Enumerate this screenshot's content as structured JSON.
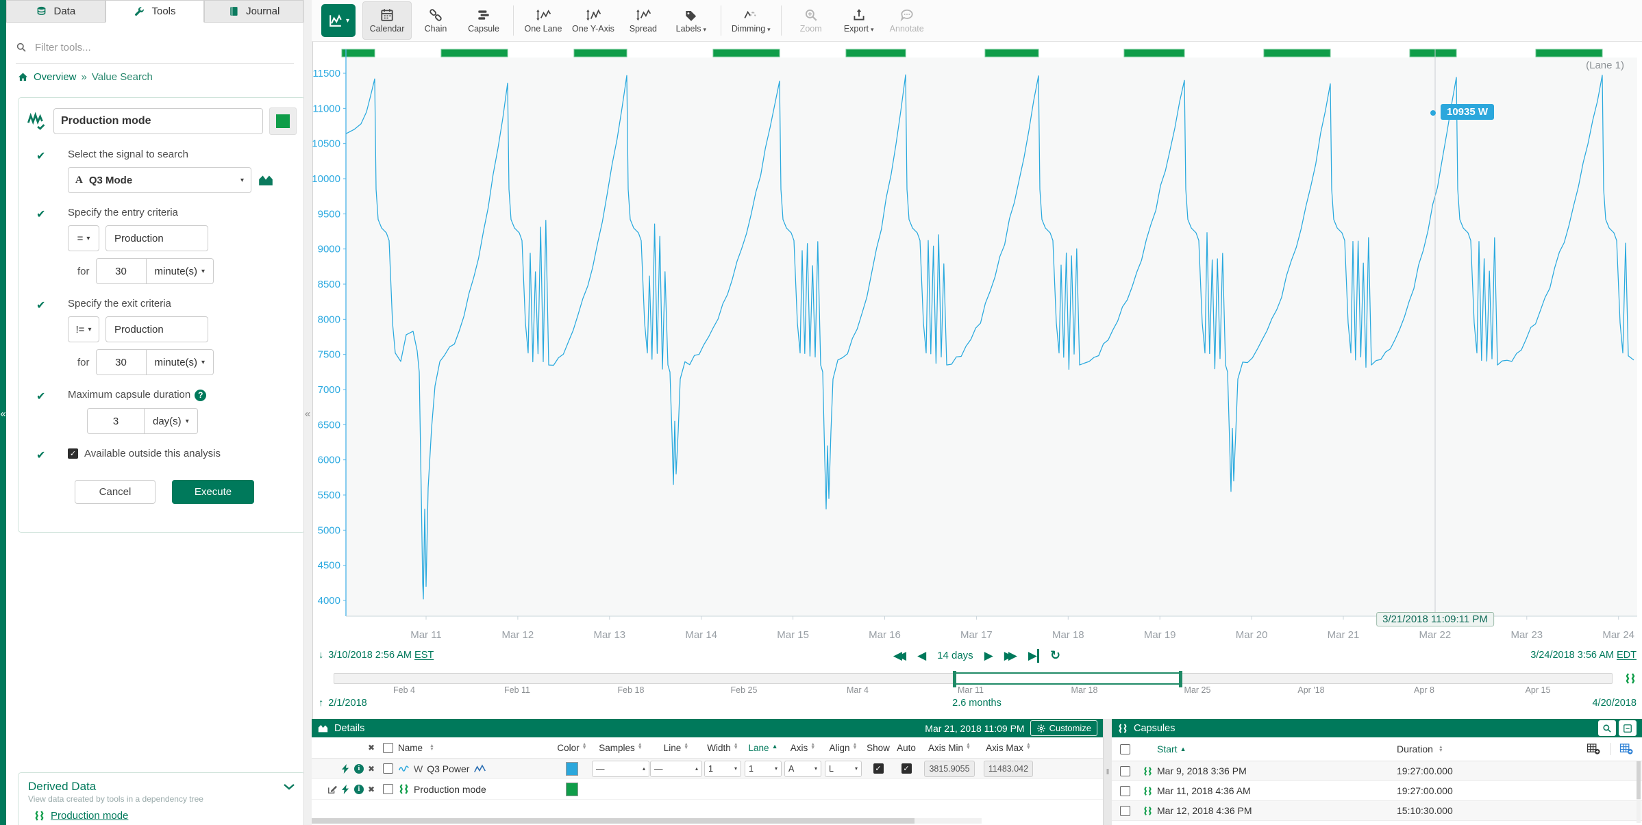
{
  "colors": {
    "brand_green": "#00795b",
    "capsule_green": "#0f9d49",
    "signal_blue": "#29a9de",
    "badge_blue": "#2ba7dc"
  },
  "sidebar": {
    "tabs": [
      {
        "label": "Data",
        "icon": "db-icon"
      },
      {
        "label": "Tools",
        "icon": "wrench-icon"
      },
      {
        "label": "Journal",
        "icon": "journal-icon"
      }
    ],
    "filter_placeholder": "Filter tools...",
    "breadcrumb": {
      "home": "Overview",
      "sep": "»",
      "current": "Value Search"
    },
    "tool": {
      "name_value": "Production mode",
      "select_signal_title": "Select the signal to search",
      "signal_type": "A",
      "signal_label": "Q3 Mode",
      "entry_title": "Specify the entry criteria",
      "entry_op": "=",
      "entry_value": "Production",
      "entry_for": "for",
      "entry_duration": "30",
      "entry_unit": "minute(s)",
      "exit_title": "Specify the exit criteria",
      "exit_op": "!=",
      "exit_value": "Production",
      "exit_for": "for",
      "exit_duration": "30",
      "exit_unit": "minute(s)",
      "max_title": "Maximum capsule duration",
      "max_value": "3",
      "max_unit": "day(s)",
      "available_label": "Available outside this analysis",
      "cancel_label": "Cancel",
      "execute_label": "Execute"
    },
    "derived": {
      "title": "Derived Data",
      "subtitle": "View data created by tools in a dependency tree",
      "item": "Production mode"
    }
  },
  "toolbar": {
    "items": [
      {
        "label": "Calendar",
        "icon": "calendar-icon",
        "active": true
      },
      {
        "label": "Chain",
        "icon": "chain-icon"
      },
      {
        "label": "Capsule",
        "icon": "capsule-stack-icon"
      },
      {
        "label": "One Lane",
        "icon": "one-lane-icon",
        "sep": true
      },
      {
        "label": "One Y-Axis",
        "icon": "one-y-axis-icon"
      },
      {
        "label": "Spread",
        "icon": "spread-icon"
      },
      {
        "label": "Labels",
        "icon": "labels-icon",
        "caret": true
      },
      {
        "label": "Dimming",
        "icon": "dimming-icon",
        "caret": true,
        "sep": true
      },
      {
        "label": "Zoom",
        "icon": "zoom-icon",
        "disabled": true,
        "sep": true
      },
      {
        "label": "Export",
        "icon": "export-icon",
        "caret": true
      },
      {
        "label": "Annotate",
        "icon": "annotate-icon",
        "disabled": true
      }
    ]
  },
  "chart": {
    "lane_label": "(Lane 1)",
    "value_tooltip": "10935 W",
    "cursor_date": "3/21/2018 11:09:11 PM",
    "y_ticks": [
      11500,
      11000,
      10500,
      10000,
      9500,
      9000,
      8500,
      8000,
      7500,
      7000,
      6500,
      6000,
      5500,
      5000,
      4500,
      4000
    ],
    "x_ticks": [
      "Mar 11",
      "Mar 12",
      "Mar 13",
      "Mar 14",
      "Mar 15",
      "Mar 16",
      "Mar 17",
      "Mar 18",
      "Mar 19",
      "Mar 20",
      "Mar 21",
      "Mar 22",
      "Mar 23",
      "Mar 24"
    ],
    "capsule_bars": [
      [
        44,
        92
      ],
      [
        189,
        286
      ],
      [
        383,
        460
      ],
      [
        586,
        683
      ],
      [
        780,
        867
      ],
      [
        983,
        1061
      ],
      [
        1186,
        1274
      ],
      [
        1390,
        1487
      ],
      [
        1603,
        1671
      ],
      [
        1787,
        1884
      ]
    ],
    "line_color": "#29a9de",
    "capsule_color": "#0f9d49"
  },
  "range_row": {
    "start": "3/10/2018 2:56 AM",
    "start_tz": "EST",
    "duration": "14 days",
    "end": "3/24/2018 3:56 AM",
    "end_tz": "EDT"
  },
  "scrubber": {
    "ticks": [
      "Feb 4",
      "Feb 11",
      "Feb 18",
      "Feb 25",
      "Mar 4",
      "Mar 11",
      "Mar 18",
      "Mar 25",
      "Apr '18",
      "Apr 8",
      "Apr 15"
    ],
    "start_date": "2/1/2018",
    "duration_label": "2.6 months",
    "end_date": "4/20/2018"
  },
  "details": {
    "title": "Details",
    "timestamp": "Mar 21, 2018 11:09 PM",
    "customize_label": "Customize",
    "columns": [
      "Name",
      "Color",
      "Samples",
      "Line",
      "Width",
      "Lane",
      "Axis",
      "Align",
      "Show",
      "Auto",
      "Axis Min",
      "Axis Max"
    ],
    "sorted_column": "Lane",
    "rows": [
      {
        "unit": "W",
        "name": "Q3 Power",
        "color": "#2ba7dc",
        "samples_style": "—",
        "line_style": "—",
        "width": "1",
        "lane": "1",
        "axis": "A",
        "align": "L",
        "show": true,
        "auto": true,
        "axis_min": "3815.9055",
        "axis_max": "11483.042"
      },
      {
        "name": "Production mode",
        "color": "#0f9d49"
      }
    ]
  },
  "capsules": {
    "title": "Capsules",
    "start_column": "Start",
    "duration_column": "Duration",
    "rows": [
      {
        "start": "Mar 9, 2018 3:36 PM",
        "duration": "19:27:00.000"
      },
      {
        "start": "Mar 11, 2018 4:36 AM",
        "duration": "19:27:00.000"
      },
      {
        "start": "Mar 12, 2018 4:36 PM",
        "duration": "15:10:30.000"
      }
    ]
  }
}
